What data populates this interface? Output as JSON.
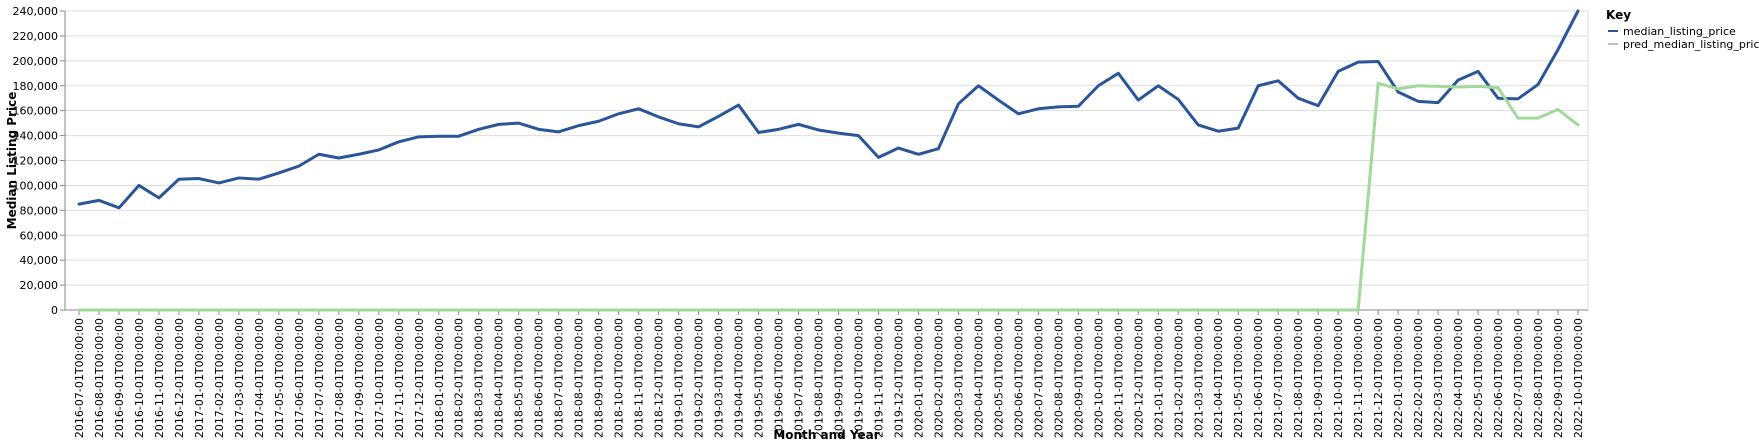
{
  "chart_data": {
    "type": "line",
    "xlabel": "Month and Year",
    "ylabel": "Median Listing Price",
    "ylim": [
      0,
      240000
    ],
    "yticks": [
      0,
      20000,
      40000,
      60000,
      80000,
      100000,
      120000,
      140000,
      160000,
      180000,
      200000,
      220000,
      240000
    ],
    "ytick_labels": [
      "0",
      "20,000",
      "40,000",
      "60,000",
      "80,000",
      "100,000",
      "120,000",
      "140,000",
      "160,000",
      "180,000",
      "200,000",
      "220,000",
      "240,000"
    ],
    "grid": true,
    "legend": {
      "title": "Key",
      "placement": "top-right"
    },
    "x": [
      "2016-07-01T00:00:00",
      "2016-08-01T00:00:00",
      "2016-09-01T00:00:00",
      "2016-10-01T00:00:00",
      "2016-11-01T00:00:00",
      "2016-12-01T00:00:00",
      "2017-01-01T00:00:00",
      "2017-02-01T00:00:00",
      "2017-03-01T00:00:00",
      "2017-04-01T00:00:00",
      "2017-05-01T00:00:00",
      "2017-06-01T00:00:00",
      "2017-07-01T00:00:00",
      "2017-08-01T00:00:00",
      "2017-09-01T00:00:00",
      "2017-10-01T00:00:00",
      "2017-11-01T00:00:00",
      "2017-12-01T00:00:00",
      "2018-01-01T00:00:00",
      "2018-02-01T00:00:00",
      "2018-03-01T00:00:00",
      "2018-04-01T00:00:00",
      "2018-05-01T00:00:00",
      "2018-06-01T00:00:00",
      "2018-07-01T00:00:00",
      "2018-08-01T00:00:00",
      "2018-09-01T00:00:00",
      "2018-10-01T00:00:00",
      "2018-11-01T00:00:00",
      "2018-12-01T00:00:00",
      "2019-01-01T00:00:00",
      "2019-02-01T00:00:00",
      "2019-03-01T00:00:00",
      "2019-04-01T00:00:00",
      "2019-05-01T00:00:00",
      "2019-06-01T00:00:00",
      "2019-07-01T00:00:00",
      "2019-08-01T00:00:00",
      "2019-09-01T00:00:00",
      "2019-10-01T00:00:00",
      "2019-11-01T00:00:00",
      "2019-12-01T00:00:00",
      "2020-01-01T00:00:00",
      "2020-02-01T00:00:00",
      "2020-03-01T00:00:00",
      "2020-04-01T00:00:00",
      "2020-05-01T00:00:00",
      "2020-06-01T00:00:00",
      "2020-07-01T00:00:00",
      "2020-08-01T00:00:00",
      "2020-09-01T00:00:00",
      "2020-10-01T00:00:00",
      "2020-11-01T00:00:00",
      "2020-12-01T00:00:00",
      "2021-01-01T00:00:00",
      "2021-02-01T00:00:00",
      "2021-03-01T00:00:00",
      "2021-04-01T00:00:00",
      "2021-05-01T00:00:00",
      "2021-06-01T00:00:00",
      "2021-07-01T00:00:00",
      "2021-08-01T00:00:00",
      "2021-09-01T00:00:00",
      "2021-10-01T00:00:00",
      "2021-11-01T00:00:00",
      "2021-12-01T00:00:00",
      "2022-01-01T00:00:00",
      "2022-02-01T00:00:00",
      "2022-03-01T00:00:00",
      "2022-04-01T00:00:00",
      "2022-05-01T00:00:00",
      "2022-06-01T00:00:00",
      "2022-07-01T00:00:00",
      "2022-08-01T00:00:00",
      "2022-09-01T00:00:00",
      "2022-10-01T00:00:00"
    ],
    "series": [
      {
        "name": "median_listing_price",
        "color": "#2a5599",
        "values": [
          85000,
          88000,
          82000,
          100000,
          90000,
          105000,
          105500,
          102000,
          106000,
          105000,
          110000,
          115500,
          125000,
          122000,
          125000,
          128500,
          135000,
          139000,
          139500,
          139500,
          145000,
          149000,
          150000,
          145000,
          143000,
          148000,
          151500,
          157500,
          161500,
          155000,
          149500,
          147000,
          155500,
          164500,
          142500,
          145000,
          149000,
          144500,
          142000,
          140000,
          122500,
          130000,
          125000,
          129500,
          165500,
          180000,
          168500,
          157500,
          161500,
          163000,
          163500,
          180000,
          190000,
          168500,
          180000,
          169000,
          148500,
          143500,
          146000,
          180000,
          184000,
          170000,
          164000,
          191500,
          199000,
          199500,
          175000,
          167500,
          166500,
          184500,
          191500,
          170000,
          169500,
          181000,
          209000,
          240000
        ]
      },
      {
        "name": "pred_median_listing_price",
        "color": "#a1d99b",
        "values": [
          0,
          0,
          0,
          0,
          0,
          0,
          0,
          0,
          0,
          0,
          0,
          0,
          0,
          0,
          0,
          0,
          0,
          0,
          0,
          0,
          0,
          0,
          0,
          0,
          0,
          0,
          0,
          0,
          0,
          0,
          0,
          0,
          0,
          0,
          0,
          0,
          0,
          0,
          0,
          0,
          0,
          0,
          0,
          0,
          0,
          0,
          0,
          0,
          0,
          0,
          0,
          0,
          0,
          0,
          0,
          0,
          0,
          0,
          0,
          0,
          0,
          0,
          0,
          0,
          0,
          182000,
          177500,
          180000,
          179500,
          179000,
          179500,
          178500,
          154000,
          154000,
          161000,
          148500
        ]
      }
    ]
  }
}
